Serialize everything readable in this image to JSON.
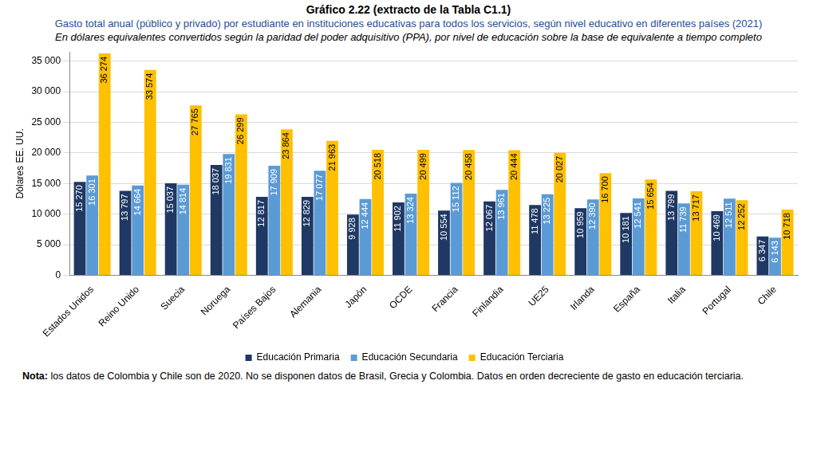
{
  "chart_data": {
    "type": "bar",
    "title": "Gráfico 2.22 (extracto de la Tabla C1.1)",
    "subtitle": "Gasto total anual (público y privado) por estudiante en instituciones educativas para todos los servicios, según nivel educativo en diferentes países (2021)",
    "subtitle_2": "En dólares equivalentes convertidos según la paridad del poder adquisitivo (PPA), por nivel de educación sobre la base de equivalente a tiempo completo",
    "y_label": "Dólares EE. UU.",
    "note": {
      "label": "Nota:",
      "text": "los datos de Colombia y Chile son de 2020. No se disponen datos de Brasil, Grecia y Colombia. Datos en orden decreciente de gasto en educación terciaria."
    },
    "categories": [
      "Estados Unidos",
      "Reino Unido",
      "Suecia",
      "Noruega",
      "Países Bajos",
      "Alemania",
      "Japón",
      "OCDE",
      "Francia",
      "Finlandia",
      "UE25",
      "Irlanda",
      "España",
      "Italia",
      "Portugal",
      "Chile"
    ],
    "series": [
      {
        "name": "Educación Primaria",
        "color": "#1f3864",
        "values": [
          15270,
          13797,
          15037,
          18037,
          12817,
          12829,
          9928,
          11902,
          10554,
          12067,
          11478,
          10959,
          10181,
          13799,
          10469,
          6347
        ],
        "value_labels": [
          "15 270",
          "13 797",
          "15 037",
          "18 037",
          "12 817",
          "12 829",
          "9 928",
          "11 902",
          "10 554",
          "12 067",
          "11 478",
          "10 959",
          "10 181",
          "13 799",
          "10 469",
          "6 347"
        ]
      },
      {
        "name": "Educación Secundaria",
        "color": "#5b9bd5",
        "values": [
          16301,
          14664,
          14814,
          19831,
          17909,
          17077,
          12444,
          13324,
          15112,
          13961,
          13225,
          12390,
          12541,
          11739,
          12511,
          6143
        ],
        "value_labels": [
          "16 301",
          "14 664",
          "14 814",
          "19 831",
          "17 909",
          "17 077",
          "12 444",
          "13 324",
          "15 112",
          "13 961",
          "13 225",
          "12 390",
          "12 541",
          "11 739",
          "12 511",
          "6 143"
        ]
      },
      {
        "name": "Educación Terciaria",
        "color": "#ffc000",
        "values": [
          36274,
          33574,
          27765,
          26299,
          23864,
          21963,
          20518,
          20499,
          20458,
          20444,
          20027,
          16700,
          15654,
          13717,
          12252,
          10718
        ],
        "value_labels": [
          "36 274",
          "33 574",
          "27 765",
          "26 299",
          "23 864",
          "21 963",
          "20 518",
          "20 499",
          "20 458",
          "20 444",
          "20 027",
          "16 700",
          "15 654",
          "13 717",
          "12 252",
          "10 718"
        ]
      }
    ],
    "ylim": [
      0,
      36500
    ],
    "yticks": [
      0,
      {
        "value": 5000,
        "label": "5 000"
      },
      {
        "value": 10000,
        "label": "10 000"
      },
      {
        "value": 15000,
        "label": "15 000"
      },
      {
        "value": 20000,
        "label": "20 000"
      },
      {
        "value": 25000,
        "label": "25 000"
      },
      {
        "value": 30000,
        "label": "30 000"
      },
      {
        "value": 35000,
        "label": "35 000"
      }
    ],
    "grid": true,
    "legend": "bottom",
    "data_labels": true
  }
}
